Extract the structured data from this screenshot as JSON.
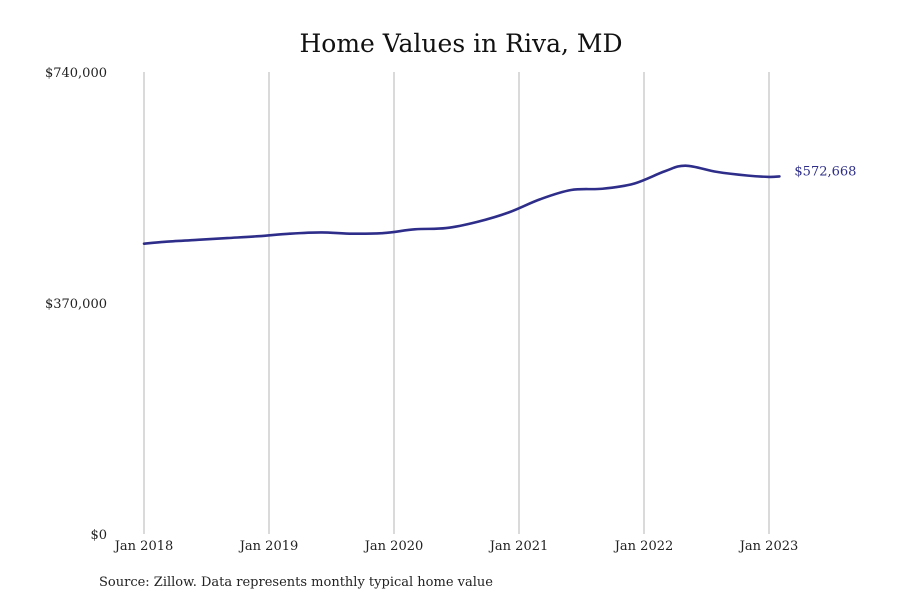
{
  "chart_data": {
    "type": "line",
    "title": "Home Values in Riva, MD",
    "source": "Source: Zillow. Data represents monthly typical home value",
    "xlabel": "",
    "ylabel": "",
    "ylim": [
      0,
      740000
    ],
    "y_ticks": [
      {
        "value": 0,
        "label": "$0"
      },
      {
        "value": 370000,
        "label": "$370,000"
      },
      {
        "value": 740000,
        "label": "$740,000"
      }
    ],
    "x_ticks": [
      {
        "value": "2018-01",
        "label": "Jan 2018"
      },
      {
        "value": "2019-01",
        "label": "Jan 2019"
      },
      {
        "value": "2020-01",
        "label": "Jan 2020"
      },
      {
        "value": "2021-01",
        "label": "Jan 2021"
      },
      {
        "value": "2022-01",
        "label": "Jan 2022"
      },
      {
        "value": "2023-01",
        "label": "Jan 2023"
      }
    ],
    "grid": {
      "vertical": true,
      "horizontal": false
    },
    "legend": "none",
    "series": [
      {
        "color": "#2e2e8a",
        "end_label": "$572,668",
        "points": [
          {
            "x": "2018-01",
            "y": 465000
          },
          {
            "x": "2018-03",
            "y": 468000
          },
          {
            "x": "2018-06",
            "y": 471000
          },
          {
            "x": "2018-09",
            "y": 474000
          },
          {
            "x": "2018-12",
            "y": 477000
          },
          {
            "x": "2019-03",
            "y": 481000
          },
          {
            "x": "2019-06",
            "y": 483000
          },
          {
            "x": "2019-09",
            "y": 481000
          },
          {
            "x": "2019-12",
            "y": 482000
          },
          {
            "x": "2020-03",
            "y": 488000
          },
          {
            "x": "2020-06",
            "y": 490000
          },
          {
            "x": "2020-09",
            "y": 500000
          },
          {
            "x": "2020-12",
            "y": 515000
          },
          {
            "x": "2021-03",
            "y": 536000
          },
          {
            "x": "2021-06",
            "y": 551000
          },
          {
            "x": "2021-09",
            "y": 553000
          },
          {
            "x": "2021-12",
            "y": 561000
          },
          {
            "x": "2022-03",
            "y": 581000
          },
          {
            "x": "2022-05",
            "y": 590000
          },
          {
            "x": "2022-08",
            "y": 580000
          },
          {
            "x": "2022-11",
            "y": 574000
          },
          {
            "x": "2023-01",
            "y": 572000
          },
          {
            "x": "2023-02",
            "y": 572668
          }
        ]
      }
    ]
  }
}
